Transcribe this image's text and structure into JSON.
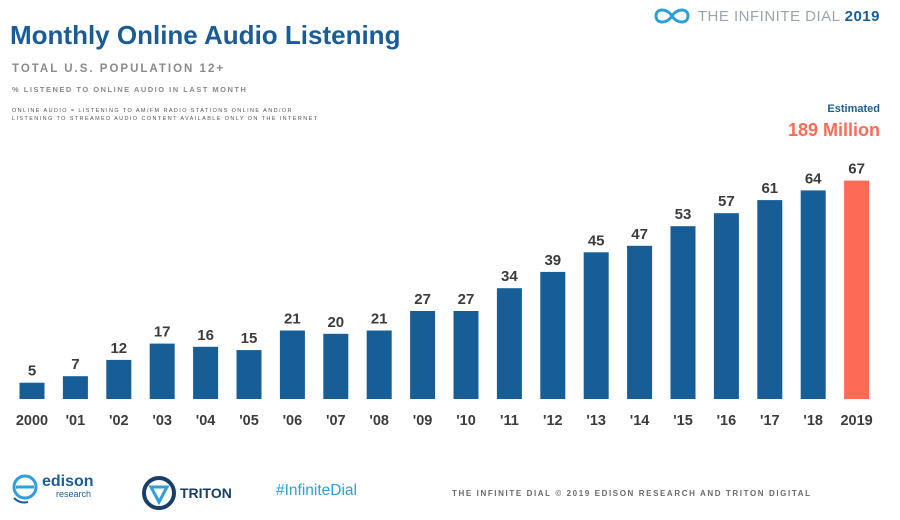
{
  "header": {
    "title": "Monthly Online Audio Listening",
    "subtitle": "TOTAL U.S. POPULATION 12+",
    "subtitle2": "% LISTENED TO ONLINE AUDIO IN LAST MONTH",
    "definition": "ONLINE AUDIO = LISTENING TO AM/FM RADIO STATIONS ONLINE AND/OR\nLISTENING TO STREAMED AUDIO CONTENT AVAILABLE ONLY ON THE INTERNET",
    "brand_name": "THE INFINITE DIAL",
    "brand_year": "2019"
  },
  "estimate": {
    "label": "Estimated",
    "value": "189 Million"
  },
  "chart_data": {
    "type": "bar",
    "categories": [
      "2000",
      "'01",
      "'02",
      "'03",
      "'04",
      "'05",
      "'06",
      "'07",
      "'08",
      "'09",
      "'10",
      "'11",
      "'12",
      "'13",
      "'14",
      "'15",
      "'16",
      "'17",
      "'18",
      "2019"
    ],
    "values": [
      5,
      7,
      12,
      17,
      16,
      15,
      21,
      20,
      21,
      27,
      27,
      34,
      39,
      45,
      47,
      53,
      57,
      61,
      64,
      67
    ],
    "title": "Monthly Online Audio Listening",
    "xlabel": "",
    "ylabel": "",
    "ylim": [
      0,
      70
    ],
    "highlight_index": 19,
    "colors": {
      "bar": "#175d96",
      "highlight": "#fd6a55"
    },
    "grid": false,
    "legend": "none"
  },
  "footer": {
    "edison_name": "edison",
    "edison_sub": "research",
    "triton_name": "TRITON",
    "hashtag": "#InfiniteDial",
    "copyright": "THE INFINITE DIAL   © 2019 EDISON RESEARCH AND TRITON DIGITAL"
  },
  "colors": {
    "primary": "#1a5d96",
    "accent": "#fd6a55",
    "hashtag": "#2e9fd8"
  },
  "icons": {
    "brand": "infinity-logo-icon",
    "edison": "edison-logo-icon",
    "triton": "triton-logo-icon"
  }
}
